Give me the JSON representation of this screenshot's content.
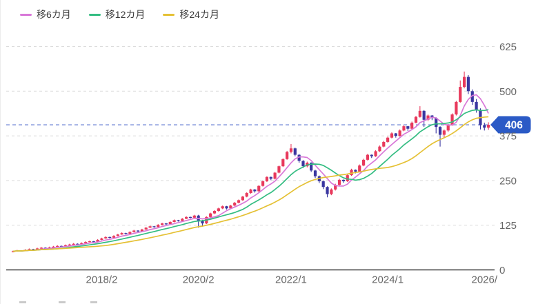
{
  "chart_data": {
    "type": "candlestick",
    "title": "",
    "grid": "horizontal-dashed",
    "legend_position": "top-left",
    "y_axis": {
      "tick_values": [
        0,
        125,
        250,
        375,
        500,
        625
      ],
      "range": [
        0,
        650
      ]
    },
    "x_axis": {
      "ticks": [
        {
          "index": 22,
          "label": "2018/2"
        },
        {
          "index": 46,
          "label": "2020/2"
        },
        {
          "index": 69,
          "label": "2022/1"
        },
        {
          "index": 93,
          "label": "2024/1"
        },
        {
          "index": 117,
          "label": "2026/"
        }
      ]
    },
    "current_price": {
      "value": 406,
      "label": "406"
    },
    "overlays": [
      {
        "name": "移6カ月",
        "type": "sma",
        "window": 6,
        "color": "#d878d8"
      },
      {
        "name": "移12カ月",
        "type": "sma",
        "window": 12,
        "color": "#34bd82"
      },
      {
        "name": "移24カ月",
        "type": "sma",
        "window": 24,
        "color": "#e5c135"
      }
    ],
    "colors": {
      "up": "#e8395c",
      "down": "#3a37a0",
      "price_line": "#7b8fd9",
      "badge": "#2b5ac6",
      "grid": "#dcdcdc",
      "axis": "#3f3f3f",
      "tick_text": "#666666"
    },
    "candles": [
      [
        51,
        54,
        49,
        52
      ],
      [
        52,
        56,
        51,
        54
      ],
      [
        54,
        55,
        51,
        53
      ],
      [
        53,
        58,
        52,
        56
      ],
      [
        56,
        60,
        55,
        58
      ],
      [
        58,
        59,
        55,
        57
      ],
      [
        57,
        62,
        56,
        60
      ],
      [
        60,
        64,
        59,
        62
      ],
      [
        62,
        63,
        59,
        61
      ],
      [
        61,
        65,
        60,
        63
      ],
      [
        63,
        67,
        62,
        65
      ],
      [
        65,
        69,
        64,
        67
      ],
      [
        67,
        68,
        64,
        66
      ],
      [
        66,
        71,
        65,
        69
      ],
      [
        69,
        73,
        68,
        71
      ],
      [
        71,
        75,
        70,
        73
      ],
      [
        73,
        74,
        70,
        72
      ],
      [
        72,
        77,
        71,
        75
      ],
      [
        75,
        80,
        74,
        78
      ],
      [
        78,
        82,
        77,
        80
      ],
      [
        80,
        81,
        77,
        79
      ],
      [
        79,
        86,
        78,
        84
      ],
      [
        84,
        90,
        83,
        88
      ],
      [
        88,
        94,
        87,
        92
      ],
      [
        92,
        93,
        88,
        90
      ],
      [
        90,
        97,
        89,
        95
      ],
      [
        95,
        101,
        94,
        99
      ],
      [
        99,
        105,
        98,
        103
      ],
      [
        103,
        104,
        99,
        101
      ],
      [
        101,
        108,
        100,
        106
      ],
      [
        106,
        112,
        105,
        110
      ],
      [
        110,
        111,
        106,
        108
      ],
      [
        108,
        115,
        107,
        113
      ],
      [
        113,
        120,
        112,
        118
      ],
      [
        118,
        124,
        117,
        122
      ],
      [
        122,
        123,
        118,
        120
      ],
      [
        120,
        128,
        119,
        126
      ],
      [
        126,
        132,
        125,
        130
      ],
      [
        130,
        131,
        126,
        128
      ],
      [
        128,
        136,
        127,
        134
      ],
      [
        134,
        141,
        133,
        139
      ],
      [
        139,
        140,
        135,
        137
      ],
      [
        137,
        145,
        136,
        143
      ],
      [
        143,
        150,
        142,
        148
      ],
      [
        148,
        149,
        144,
        146
      ],
      [
        146,
        154,
        145,
        152
      ],
      [
        152,
        154,
        118,
        138
      ],
      [
        138,
        140,
        122,
        130
      ],
      [
        130,
        150,
        128,
        148
      ],
      [
        148,
        160,
        146,
        158
      ],
      [
        158,
        167,
        156,
        165
      ],
      [
        165,
        174,
        163,
        172
      ],
      [
        172,
        180,
        170,
        178
      ],
      [
        178,
        179,
        169,
        172
      ],
      [
        172,
        182,
        170,
        180
      ],
      [
        180,
        190,
        178,
        188
      ],
      [
        188,
        197,
        186,
        195
      ],
      [
        195,
        207,
        193,
        205
      ],
      [
        205,
        217,
        203,
        215
      ],
      [
        215,
        227,
        213,
        225
      ],
      [
        225,
        226,
        216,
        220
      ],
      [
        220,
        237,
        218,
        235
      ],
      [
        235,
        250,
        233,
        248
      ],
      [
        248,
        262,
        246,
        260
      ],
      [
        260,
        261,
        251,
        255
      ],
      [
        255,
        274,
        253,
        272
      ],
      [
        272,
        292,
        270,
        290
      ],
      [
        290,
        312,
        288,
        310
      ],
      [
        310,
        333,
        308,
        330
      ],
      [
        330,
        352,
        326,
        340
      ],
      [
        340,
        342,
        318,
        322
      ],
      [
        322,
        324,
        300,
        305
      ],
      [
        305,
        307,
        285,
        290
      ],
      [
        290,
        303,
        287,
        300
      ],
      [
        300,
        301,
        274,
        278
      ],
      [
        278,
        280,
        257,
        262
      ],
      [
        262,
        264,
        243,
        248
      ],
      [
        248,
        250,
        226,
        232
      ],
      [
        232,
        234,
        203,
        212
      ],
      [
        212,
        228,
        209,
        225
      ],
      [
        225,
        241,
        222,
        238
      ],
      [
        238,
        255,
        236,
        252
      ],
      [
        252,
        253,
        244,
        248
      ],
      [
        248,
        268,
        246,
        265
      ],
      [
        265,
        283,
        263,
        280
      ],
      [
        280,
        281,
        270,
        275
      ],
      [
        275,
        295,
        273,
        292
      ],
      [
        292,
        311,
        290,
        308
      ],
      [
        308,
        325,
        306,
        322
      ],
      [
        322,
        323,
        313,
        318
      ],
      [
        318,
        335,
        316,
        332
      ],
      [
        332,
        348,
        330,
        345
      ],
      [
        345,
        361,
        343,
        358
      ],
      [
        358,
        373,
        356,
        370
      ],
      [
        370,
        385,
        368,
        382
      ],
      [
        382,
        383,
        370,
        375
      ],
      [
        375,
        393,
        373,
        390
      ],
      [
        390,
        405,
        388,
        402
      ],
      [
        402,
        403,
        389,
        395
      ],
      [
        395,
        415,
        393,
        412
      ],
      [
        412,
        431,
        410,
        428
      ],
      [
        428,
        458,
        426,
        445
      ],
      [
        445,
        447,
        400,
        420
      ],
      [
        420,
        435,
        416,
        432
      ],
      [
        432,
        433,
        419,
        425
      ],
      [
        425,
        427,
        382,
        400
      ],
      [
        400,
        402,
        345,
        378
      ],
      [
        378,
        393,
        370,
        390
      ],
      [
        390,
        408,
        386,
        405
      ],
      [
        405,
        438,
        403,
        435
      ],
      [
        435,
        473,
        432,
        470
      ],
      [
        470,
        530,
        468,
        512
      ],
      [
        512,
        555,
        508,
        540
      ],
      [
        540,
        545,
        492,
        500
      ],
      [
        500,
        505,
        462,
        470
      ],
      [
        470,
        478,
        440,
        448
      ],
      [
        448,
        452,
        393,
        405
      ],
      [
        405,
        412,
        390,
        398
      ],
      [
        398,
        413,
        392,
        406
      ]
    ]
  }
}
